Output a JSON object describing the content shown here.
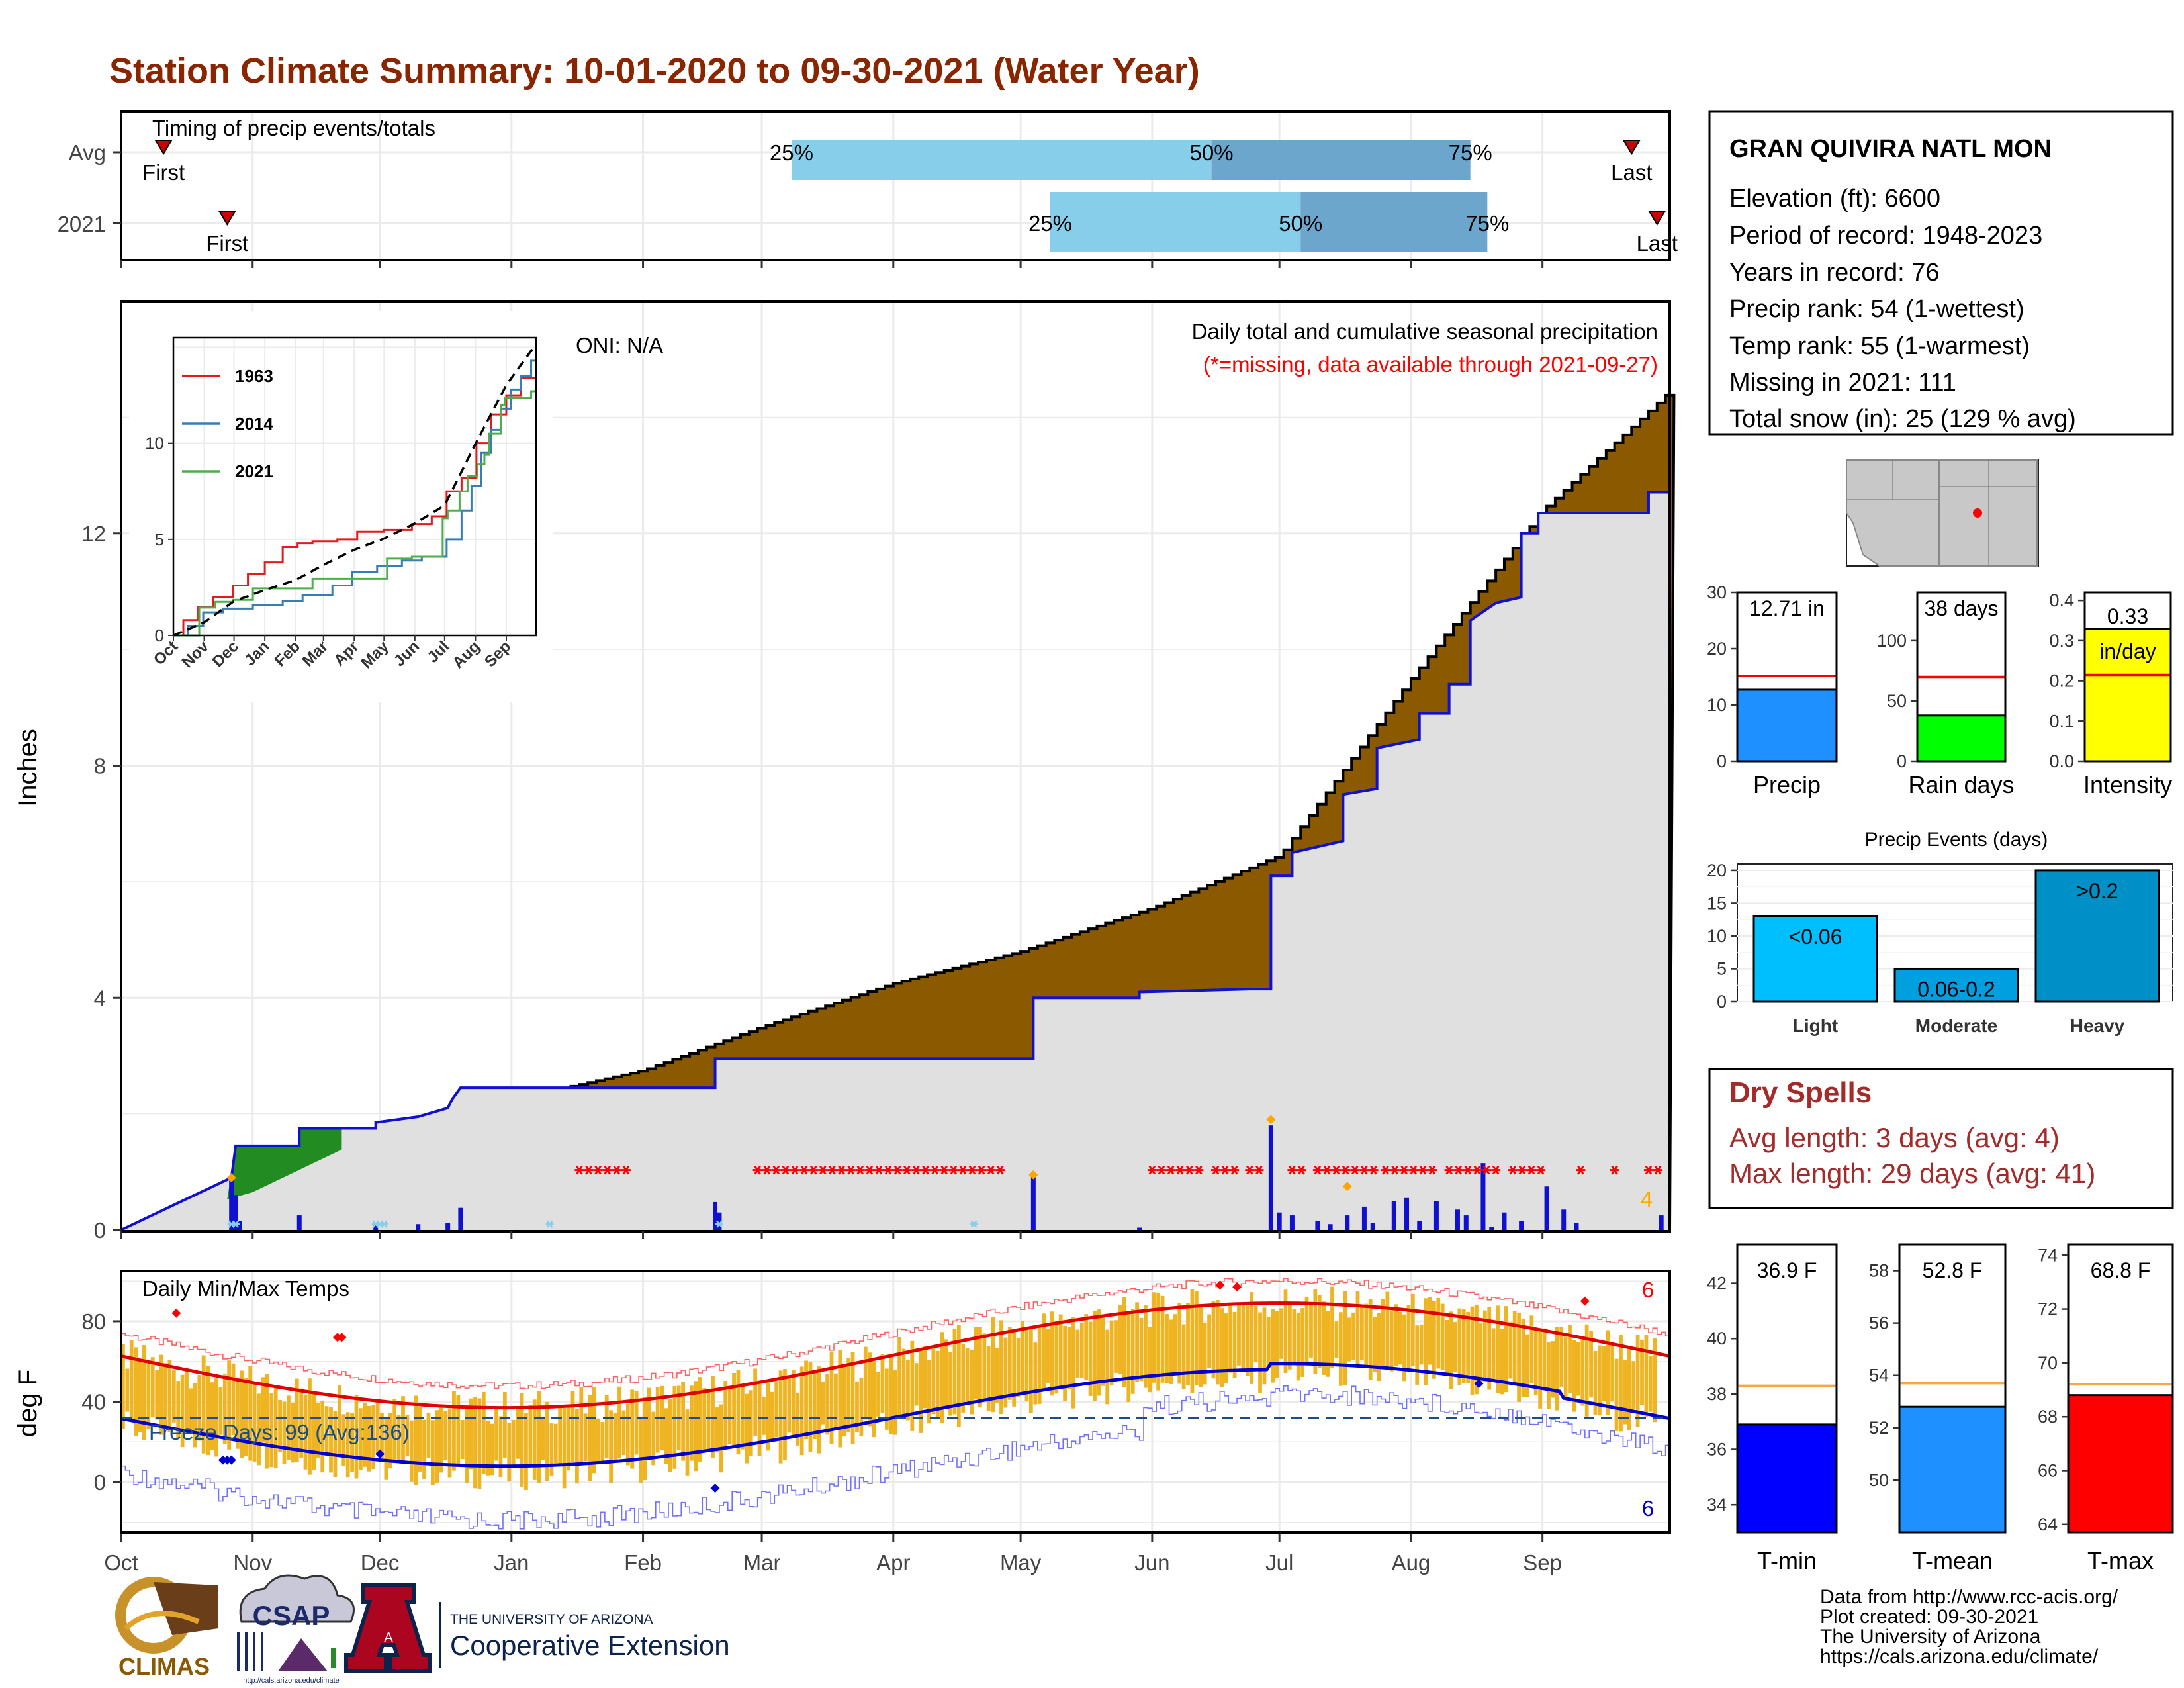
{
  "title": "Station Climate Summary: 10-01-2020 to 09-30-2021 (Water Year)",
  "timing": {
    "label": "Timing of precip events/totals",
    "rows": [
      {
        "name": "Avg",
        "first_label": "First",
        "last_label": "Last",
        "first_doy": 10,
        "last_doy": 356,
        "p25_doy": 158,
        "p50_doy": 257,
        "p75_doy": 318,
        "p25_label": "25%",
        "p50_label": "50%",
        "p75_label": "75%"
      },
      {
        "name": "2021",
        "first_label": "First",
        "last_label": "Last",
        "first_doy": 25,
        "last_doy": 362,
        "p25_doy": 219,
        "p50_doy": 278,
        "p75_doy": 322,
        "p25_label": "25%",
        "p50_label": "50%",
        "p75_label": "75%"
      }
    ]
  },
  "precip": {
    "oni": "ONI: N/A",
    "note1": "Daily total and cumulative seasonal precipitation",
    "note2": "(*=missing, data available through 2021-09-27)",
    "ylabel": "Inches",
    "ylim": [
      0,
      16
    ],
    "yticks": [
      0,
      4,
      8,
      12
    ],
    "missing_count": "4",
    "colors": {
      "avg_fill": "#8b5a00",
      "obs_fill": "#e0e0e0",
      "obs_line": "#1010d0",
      "above_fill": "#228b22",
      "bar": "#1010d0",
      "missing": "#ff0000"
    }
  },
  "inset": {
    "yticks": [
      0,
      5,
      10
    ],
    "xticks": [
      "Oct",
      "Nov",
      "Dec",
      "Jan",
      "Feb",
      "Mar",
      "Apr",
      "May",
      "Jun",
      "Jul",
      "Aug",
      "Sep"
    ],
    "legend": [
      {
        "name": "1963",
        "color": "#e41a1c"
      },
      {
        "name": "2014",
        "color": "#377eb8"
      },
      {
        "name": "2021",
        "color": "#4daf4a"
      }
    ]
  },
  "temps": {
    "label": "Daily Min/Max Temps",
    "ylabel": "deg F",
    "ylim": [
      -25,
      105
    ],
    "yticks": [
      0,
      40,
      80
    ],
    "freeze_label": "Freeze Days: 99 (Avg:136)",
    "freeze_line": 32,
    "max_record_count": "6",
    "min_record_count": "6"
  },
  "months": [
    "Oct",
    "Nov",
    "Dec",
    "Jan",
    "Feb",
    "Mar",
    "Apr",
    "May",
    "Jun",
    "Jul",
    "Aug",
    "Sep"
  ],
  "station": {
    "name": "GRAN QUIVIRA NATL MON",
    "lines": [
      "Elevation (ft): 6600",
      "Period of record: 1948-2023",
      "Years in record: 76",
      "Precip rank: 54 (1-wettest)",
      "Temp rank: 55 (1-warmest)",
      "Missing in 2021: 111",
      "Total snow (in): 25 (129 % avg)"
    ]
  },
  "summary_bars": [
    {
      "label": "Precip",
      "value_label": "12.71 in",
      "value": 12.71,
      "avg": 15.2,
      "ylim": [
        0,
        30
      ],
      "yticks": [
        0,
        10,
        20,
        30
      ],
      "color": "#1e90ff"
    },
    {
      "label": "Rain days",
      "value_label": "38 days",
      "value": 38,
      "avg": 70,
      "ylim": [
        0,
        140
      ],
      "yticks": [
        0,
        50,
        100
      ],
      "color": "#00ff00"
    },
    {
      "label": "Intensity",
      "value_label": "0.33",
      "value_label2": "in/day",
      "value": 0.33,
      "avg": 0.215,
      "ylim": [
        0,
        0.42
      ],
      "yticks": [
        0.0,
        0.1,
        0.2,
        0.3,
        0.4
      ],
      "color": "#ffff00"
    }
  ],
  "events": {
    "title": "Precip Events (days)",
    "ylim": [
      0,
      21
    ],
    "yticks": [
      0,
      5,
      10,
      15,
      20
    ],
    "bars": [
      {
        "cat": "Light",
        "label": "<0.06",
        "value": 13,
        "color": "#00bfff"
      },
      {
        "cat": "Moderate",
        "label": "0.06-0.2",
        "value": 5,
        "color": "#00a0e0"
      },
      {
        "cat": "Heavy",
        "label": ">0.2",
        "value": 20,
        "color": "#0090c8"
      }
    ]
  },
  "dry_spells": {
    "title": "Dry Spells",
    "line1": "Avg length: 3 days (avg: 4)",
    "line2": "Max length: 29 days (avg: 41)"
  },
  "temp_bars": [
    {
      "label": "T-min",
      "value_label": "36.9 F",
      "value": 36.9,
      "avg": 38.3,
      "ylim": [
        33,
        43.4
      ],
      "yticks": [
        34,
        36,
        38,
        40,
        42
      ],
      "color": "#0000ff"
    },
    {
      "label": "T-mean",
      "value_label": "52.8 F",
      "value": 52.8,
      "avg": 53.7,
      "ylim": [
        48,
        59
      ],
      "yticks": [
        50,
        52,
        54,
        56,
        58
      ],
      "color": "#1e90ff"
    },
    {
      "label": "T-max",
      "value_label": "68.8 F",
      "value": 68.8,
      "avg": 69.2,
      "ylim": [
        63.7,
        74.4
      ],
      "yticks": [
        64,
        66,
        68,
        70,
        72,
        74
      ],
      "color": "#ff0000"
    }
  ],
  "credits": [
    "Data from http://www.rcc-acis.org/",
    "Plot created: 09-30-2021",
    "The University of Arizona",
    "https://cals.arizona.edu/climate/"
  ],
  "logos": {
    "climas": "CLIMAS",
    "csap": "CSAP",
    "csap_url": "http://cals.arizona.edu/climate",
    "ua_top": "THE UNIVERSITY OF ARIZONA",
    "ua_bottom": "Cooperative Extension",
    "ua_letter": "A"
  }
}
